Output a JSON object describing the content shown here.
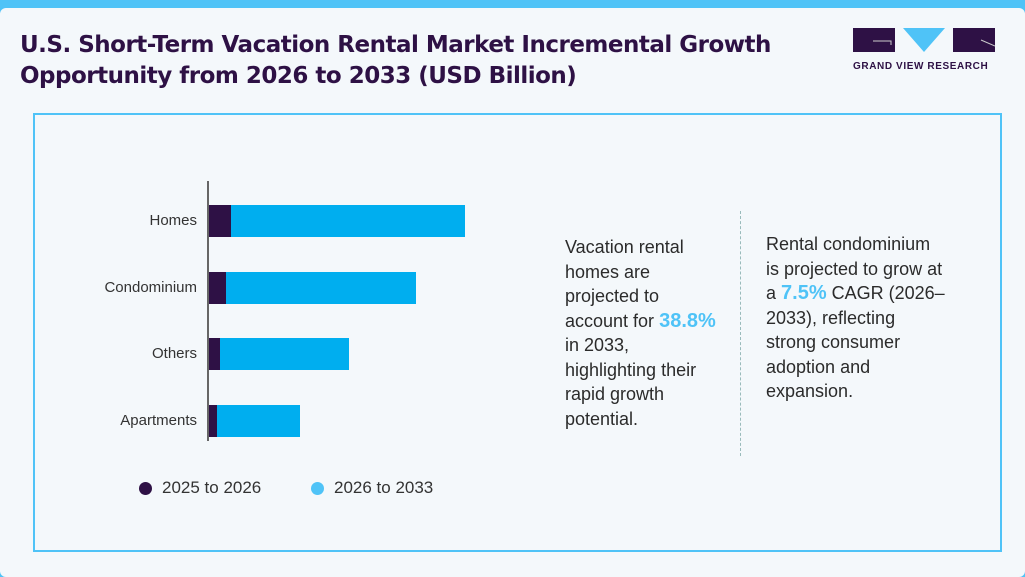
{
  "title_line1": "U.S. Short-Term Vacation Rental Market Incremental Growth",
  "title_line2": "Opportunity from 2026 to 2033 (USD Billion)",
  "logo": {
    "text": "GRAND VIEW RESEARCH"
  },
  "colors": {
    "series1": "#2e1145",
    "series2": "#00aeef",
    "accent": "#4fc3f7"
  },
  "chart_data": {
    "type": "bar",
    "orientation": "horizontal",
    "stacked": true,
    "categories": [
      "Homes",
      "Condominium",
      "Others",
      "Apartments"
    ],
    "series": [
      {
        "name": "2025 to 2026",
        "values": [
          2.2,
          1.7,
          1.1,
          0.8
        ]
      },
      {
        "name": "2026 to 2033",
        "values": [
          23.4,
          19.0,
          12.9,
          8.3
        ]
      }
    ],
    "grid": false,
    "legend": "bottom"
  },
  "note1": {
    "pre": "Vacation rental homes are projected to account for",
    "highlight": "38.8%",
    "post": "in 2033, highlighting their rapid growth potential."
  },
  "note2": {
    "pre": "Rental condominium is projected to grow at a",
    "highlight": "7.5%",
    "post": "CAGR (2026–2033), reflecting strong consumer adoption and expansion."
  }
}
